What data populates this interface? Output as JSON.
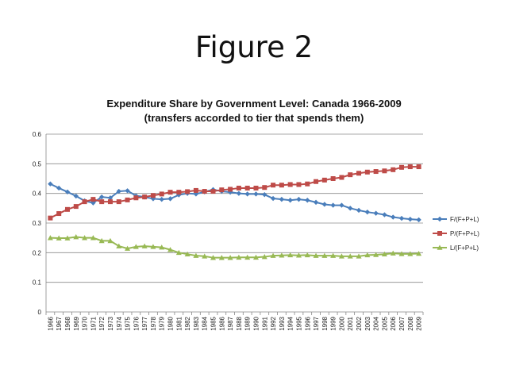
{
  "slide": {
    "title": "Figure 2"
  },
  "chart_data": {
    "type": "line",
    "title": "Expenditure Share by Government Level: Canada 1966-2009",
    "subtitle": "(transfers accorded to tier that spends them)",
    "xlabel": "",
    "ylabel": "",
    "ylim": [
      0,
      0.6
    ],
    "yticks": [
      "0",
      "0.1",
      "0.2",
      "0.3",
      "0.4",
      "0.5",
      "0.6"
    ],
    "grid": true,
    "legend_position": "right",
    "categories": [
      "1966",
      "1967",
      "1968",
      "1969",
      "1970",
      "1971",
      "1972",
      "1973",
      "1974",
      "1975",
      "1976",
      "1977",
      "1978",
      "1979",
      "1980",
      "1981",
      "1982",
      "1983",
      "1984",
      "1985",
      "1986",
      "1987",
      "1988",
      "1989",
      "1990",
      "1991",
      "1992",
      "1993",
      "1994",
      "1995",
      "1996",
      "1997",
      "1998",
      "1999",
      "2000",
      "2001",
      "2002",
      "2003",
      "2004",
      "2005",
      "2006",
      "2007",
      "2008",
      "2009"
    ],
    "series": [
      {
        "name": "F/(F+P+L)",
        "color": "#4a7ebb",
        "marker": "diamond",
        "values": [
          0.432,
          0.418,
          0.405,
          0.391,
          0.375,
          0.368,
          0.388,
          0.385,
          0.407,
          0.409,
          0.392,
          0.388,
          0.382,
          0.38,
          0.382,
          0.395,
          0.4,
          0.398,
          0.405,
          0.413,
          0.407,
          0.404,
          0.4,
          0.398,
          0.398,
          0.396,
          0.383,
          0.38,
          0.377,
          0.38,
          0.377,
          0.37,
          0.363,
          0.36,
          0.36,
          0.35,
          0.343,
          0.337,
          0.333,
          0.328,
          0.32,
          0.316,
          0.313,
          0.311
        ]
      },
      {
        "name": "P/(F+P+L)",
        "color": "#be4b48",
        "marker": "square",
        "values": [
          0.317,
          0.332,
          0.346,
          0.356,
          0.372,
          0.38,
          0.372,
          0.372,
          0.372,
          0.378,
          0.385,
          0.388,
          0.393,
          0.398,
          0.404,
          0.404,
          0.406,
          0.41,
          0.407,
          0.407,
          0.412,
          0.414,
          0.418,
          0.418,
          0.418,
          0.42,
          0.428,
          0.428,
          0.43,
          0.43,
          0.432,
          0.44,
          0.445,
          0.45,
          0.454,
          0.463,
          0.468,
          0.472,
          0.474,
          0.476,
          0.48,
          0.488,
          0.49,
          0.49
        ]
      },
      {
        "name": "L/(F+P+L)",
        "color": "#98b954",
        "marker": "triangle",
        "values": [
          0.25,
          0.249,
          0.249,
          0.253,
          0.25,
          0.25,
          0.24,
          0.24,
          0.222,
          0.214,
          0.22,
          0.222,
          0.22,
          0.218,
          0.21,
          0.2,
          0.195,
          0.19,
          0.188,
          0.183,
          0.183,
          0.183,
          0.184,
          0.184,
          0.184,
          0.186,
          0.19,
          0.191,
          0.192,
          0.191,
          0.192,
          0.19,
          0.19,
          0.19,
          0.188,
          0.188,
          0.188,
          0.192,
          0.193,
          0.195,
          0.198,
          0.196,
          0.196,
          0.197
        ]
      }
    ]
  }
}
